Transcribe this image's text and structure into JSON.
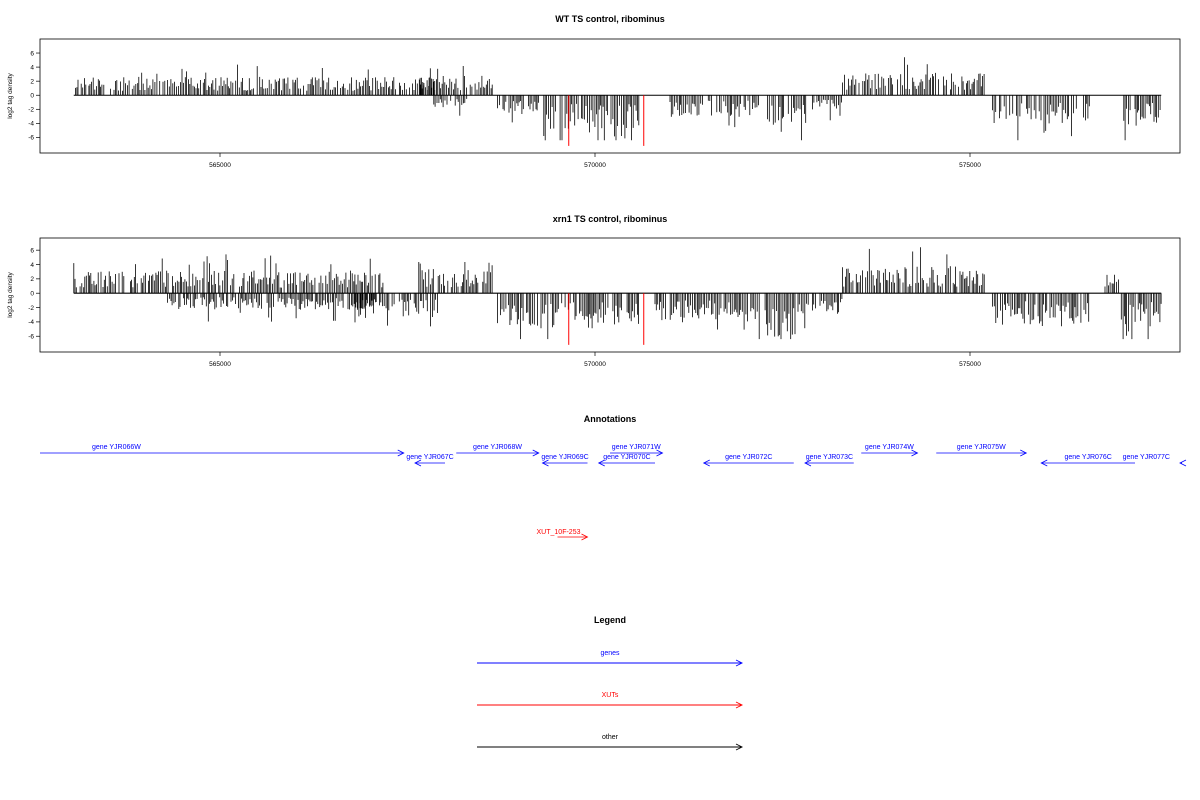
{
  "chart_data": [
    {
      "type": "bar",
      "title": "WT TS control, ribominus",
      "ylabel": "log2 tag density",
      "xlabel": "",
      "xlim": [
        562600,
        577800
      ],
      "ylim": [
        -7.5,
        7
      ],
      "x_ticks": [
        565000,
        570000,
        575000
      ],
      "y_ticks": [
        -6,
        -4,
        -2,
        0,
        2,
        4,
        6
      ],
      "grid": false,
      "regions": [
        {
          "strand": "+",
          "start": 563050,
          "end": 567900,
          "mean": 1.8
        },
        {
          "strand": "-",
          "start": 567850,
          "end": 568300,
          "mean": -1.2
        },
        {
          "strand": "+",
          "start": 567650,
          "end": 568650,
          "mean": 2.0
        },
        {
          "strand": "-",
          "start": 568700,
          "end": 569250,
          "mean": -2.0
        },
        {
          "strand": "-",
          "start": 569300,
          "end": 570600,
          "mean": -3.3
        },
        {
          "strand": "-",
          "start": 571000,
          "end": 572200,
          "mean": -2.2
        },
        {
          "strand": "-",
          "start": 572300,
          "end": 572850,
          "mean": -3.0
        },
        {
          "strand": "-",
          "start": 572900,
          "end": 573300,
          "mean": -1.5
        },
        {
          "strand": "+",
          "start": 573300,
          "end": 575200,
          "mean": 2.2
        },
        {
          "strand": "-",
          "start": 575300,
          "end": 576600,
          "mean": -2.8
        },
        {
          "strand": "-",
          "start": 577050,
          "end": 577550,
          "mean": -3.0
        }
      ],
      "red_marks": [
        {
          "x": 569650,
          "y": -7.2
        },
        {
          "x": 570650,
          "y": -7.2
        }
      ]
    },
    {
      "type": "bar",
      "title": "xrn1 TS control, ribominus",
      "ylabel": "log2 tag density",
      "xlabel": "",
      "xlim": [
        562600,
        577800
      ],
      "ylim": [
        -7.5,
        7
      ],
      "x_ticks": [
        565000,
        570000,
        575000
      ],
      "y_ticks": [
        -6,
        -4,
        -2,
        0,
        2,
        4,
        6
      ],
      "grid": false,
      "regions": [
        {
          "strand": "+",
          "start": 563050,
          "end": 567200,
          "mean": 2.2
        },
        {
          "strand": "-",
          "start": 564300,
          "end": 567100,
          "mean": -1.6
        },
        {
          "strand": "-",
          "start": 566800,
          "end": 567900,
          "mean": -2.4
        },
        {
          "strand": "+",
          "start": 567650,
          "end": 568650,
          "mean": 2.4
        },
        {
          "strand": "-",
          "start": 568700,
          "end": 570600,
          "mean": -3.4
        },
        {
          "strand": "-",
          "start": 570800,
          "end": 572200,
          "mean": -2.8
        },
        {
          "strand": "-",
          "start": 572250,
          "end": 572850,
          "mean": -4.2
        },
        {
          "strand": "-",
          "start": 572900,
          "end": 573300,
          "mean": -2.0
        },
        {
          "strand": "+",
          "start": 573300,
          "end": 575200,
          "mean": 2.6
        },
        {
          "strand": "-",
          "start": 575300,
          "end": 576600,
          "mean": -3.2
        },
        {
          "strand": "+",
          "start": 576800,
          "end": 577000,
          "mean": 1.8
        },
        {
          "strand": "-",
          "start": 577000,
          "end": 577550,
          "mean": -3.2
        }
      ],
      "red_marks": [
        {
          "x": 569650,
          "y": -7.2
        },
        {
          "x": 570650,
          "y": -7.2
        }
      ]
    },
    {
      "type": "table",
      "title": "Annotations",
      "genes": [
        {
          "label": "gene YJR066W",
          "strand": "+",
          "start": 562600,
          "end": 567450
        },
        {
          "label": "gene YJR067C",
          "strand": "-",
          "start": 567600,
          "end": 568000
        },
        {
          "label": "gene YJR068W",
          "strand": "+",
          "start": 568150,
          "end": 569250
        },
        {
          "label": "gene YJR069C",
          "strand": "-",
          "start": 569300,
          "end": 569900
        },
        {
          "label": "gene YJR070C",
          "strand": "-",
          "start": 570050,
          "end": 570800
        },
        {
          "label": "gene YJR071W",
          "strand": "+",
          "start": 570200,
          "end": 570900
        },
        {
          "label": "gene YJR072C",
          "strand": "-",
          "start": 571450,
          "end": 572650
        },
        {
          "label": "gene YJR073C",
          "strand": "-",
          "start": 572800,
          "end": 573450
        },
        {
          "label": "gene YJR074W",
          "strand": "+",
          "start": 573550,
          "end": 574300
        },
        {
          "label": "gene YJR075W",
          "strand": "+",
          "start": 574550,
          "end": 575750
        },
        {
          "label": "gene YJR076C",
          "strand": "-",
          "start": 575950,
          "end": 577200
        },
        {
          "label": "gene YJR077C",
          "strand": "-",
          "start": 577800,
          "end": 578800
        }
      ],
      "xuts": [
        {
          "label": "XUT_10F-253",
          "strand": "+",
          "start": 569500,
          "end": 569900
        }
      ]
    }
  ],
  "legend": {
    "title": "Legend",
    "entries": [
      {
        "label": "genes",
        "color": "#0000ff"
      },
      {
        "label": "XUTs",
        "color": "#ff0000"
      },
      {
        "label": "other",
        "color": "#000000"
      }
    ]
  },
  "colors": {
    "signal": "#000000",
    "gene": "#0000ff",
    "xut": "#ff0000",
    "other": "#000000"
  }
}
